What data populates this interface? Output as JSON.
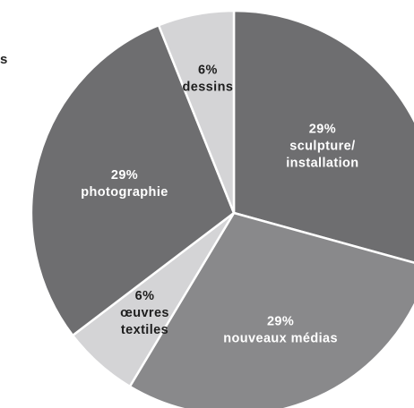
{
  "stray_text": "s",
  "chart_data": {
    "type": "pie",
    "slices": [
      {
        "pct_label": "29%",
        "label_lines": [
          "sculpture/",
          "installation"
        ],
        "value": 29,
        "color": "#6e6e70",
        "text_color": "#ffffff"
      },
      {
        "pct_label": "29%",
        "label_lines": [
          "nouveaux médias"
        ],
        "value": 29,
        "color": "#89898b",
        "text_color": "#ffffff"
      },
      {
        "pct_label": "6%",
        "label_lines": [
          "œuvres",
          "textiles"
        ],
        "value": 6,
        "color": "#d4d4d6",
        "text_color": "#1e1e1e"
      },
      {
        "pct_label": "29%",
        "label_lines": [
          "photographie"
        ],
        "value": 29,
        "color": "#6e6e70",
        "text_color": "#ffffff"
      },
      {
        "pct_label": "6%",
        "label_lines": [
          "dessins"
        ],
        "value": 6,
        "color": "#d4d4d6",
        "text_color": "#1e1e1e"
      }
    ]
  }
}
